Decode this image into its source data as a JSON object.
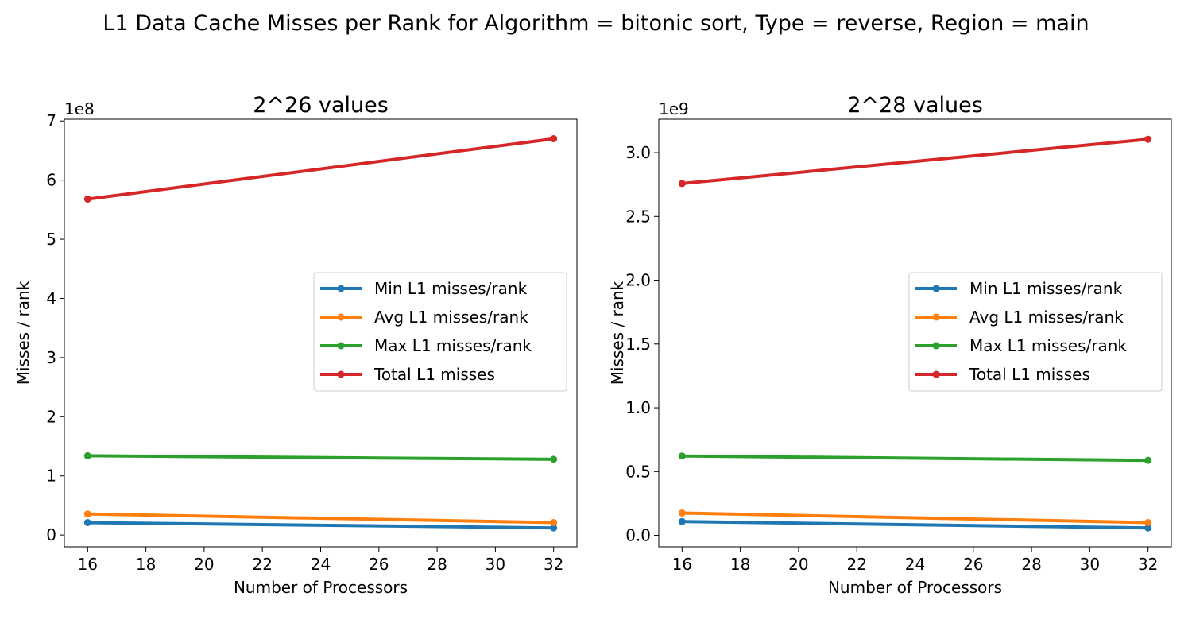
{
  "figure": {
    "suptitle": "L1 Data Cache Misses per Rank for Algorithm = bitonic sort, Type = reverse, Region = main"
  },
  "colors": {
    "Min L1 misses/rank": "#1f77b4",
    "Avg L1 misses/rank": "#ff7f0e",
    "Max L1 misses/rank": "#2ca02c",
    "Total L1 misses": "#d62728"
  },
  "chart_data": [
    {
      "type": "line",
      "title": "2^26 values",
      "xlabel": "Number of Processors",
      "ylabel": "Misses / rank",
      "y_scale_label": "1e8",
      "y_scale": 100000000,
      "x": [
        16,
        32
      ],
      "xlim": [
        15.2,
        32.8
      ],
      "ylim": [
        -20000000,
        703000000
      ],
      "xticks": [
        16,
        18,
        20,
        22,
        24,
        26,
        28,
        30,
        32
      ],
      "yticks": [
        0,
        100000000,
        200000000,
        300000000,
        400000000,
        500000000,
        600000000,
        700000000
      ],
      "ytick_labels": [
        "0",
        "1",
        "2",
        "3",
        "4",
        "5",
        "6",
        "7"
      ],
      "grid": false,
      "legend_position": "center-right",
      "series": [
        {
          "name": "Min L1 misses/rank",
          "values": [
            21000000,
            12000000
          ]
        },
        {
          "name": "Avg L1 misses/rank",
          "values": [
            35500000,
            21000000
          ]
        },
        {
          "name": "Max L1 misses/rank",
          "values": [
            134000000,
            128000000
          ]
        },
        {
          "name": "Total L1 misses",
          "values": [
            568000000,
            670000000
          ]
        }
      ]
    },
    {
      "type": "line",
      "title": "2^28 values",
      "xlabel": "Number of Processors",
      "ylabel": "Misses / rank",
      "y_scale_label": "1e9",
      "y_scale": 1000000000,
      "x": [
        16,
        32
      ],
      "xlim": [
        15.2,
        32.8
      ],
      "ylim": [
        -90000000,
        3262000000
      ],
      "xticks": [
        16,
        18,
        20,
        22,
        24,
        26,
        28,
        30,
        32
      ],
      "yticks": [
        0,
        500000000,
        1000000000,
        1500000000,
        2000000000,
        2500000000,
        3000000000
      ],
      "ytick_labels": [
        "0.0",
        "0.5",
        "1.0",
        "1.5",
        "2.0",
        "2.5",
        "3.0"
      ],
      "grid": false,
      "legend_position": "center-right",
      "series": [
        {
          "name": "Min L1 misses/rank",
          "values": [
            108000000,
            58000000
          ]
        },
        {
          "name": "Avg L1 misses/rank",
          "values": [
            175000000,
            100000000
          ]
        },
        {
          "name": "Max L1 misses/rank",
          "values": [
            622000000,
            588000000
          ]
        },
        {
          "name": "Total L1 misses",
          "values": [
            2758000000,
            3105000000
          ]
        }
      ]
    }
  ]
}
